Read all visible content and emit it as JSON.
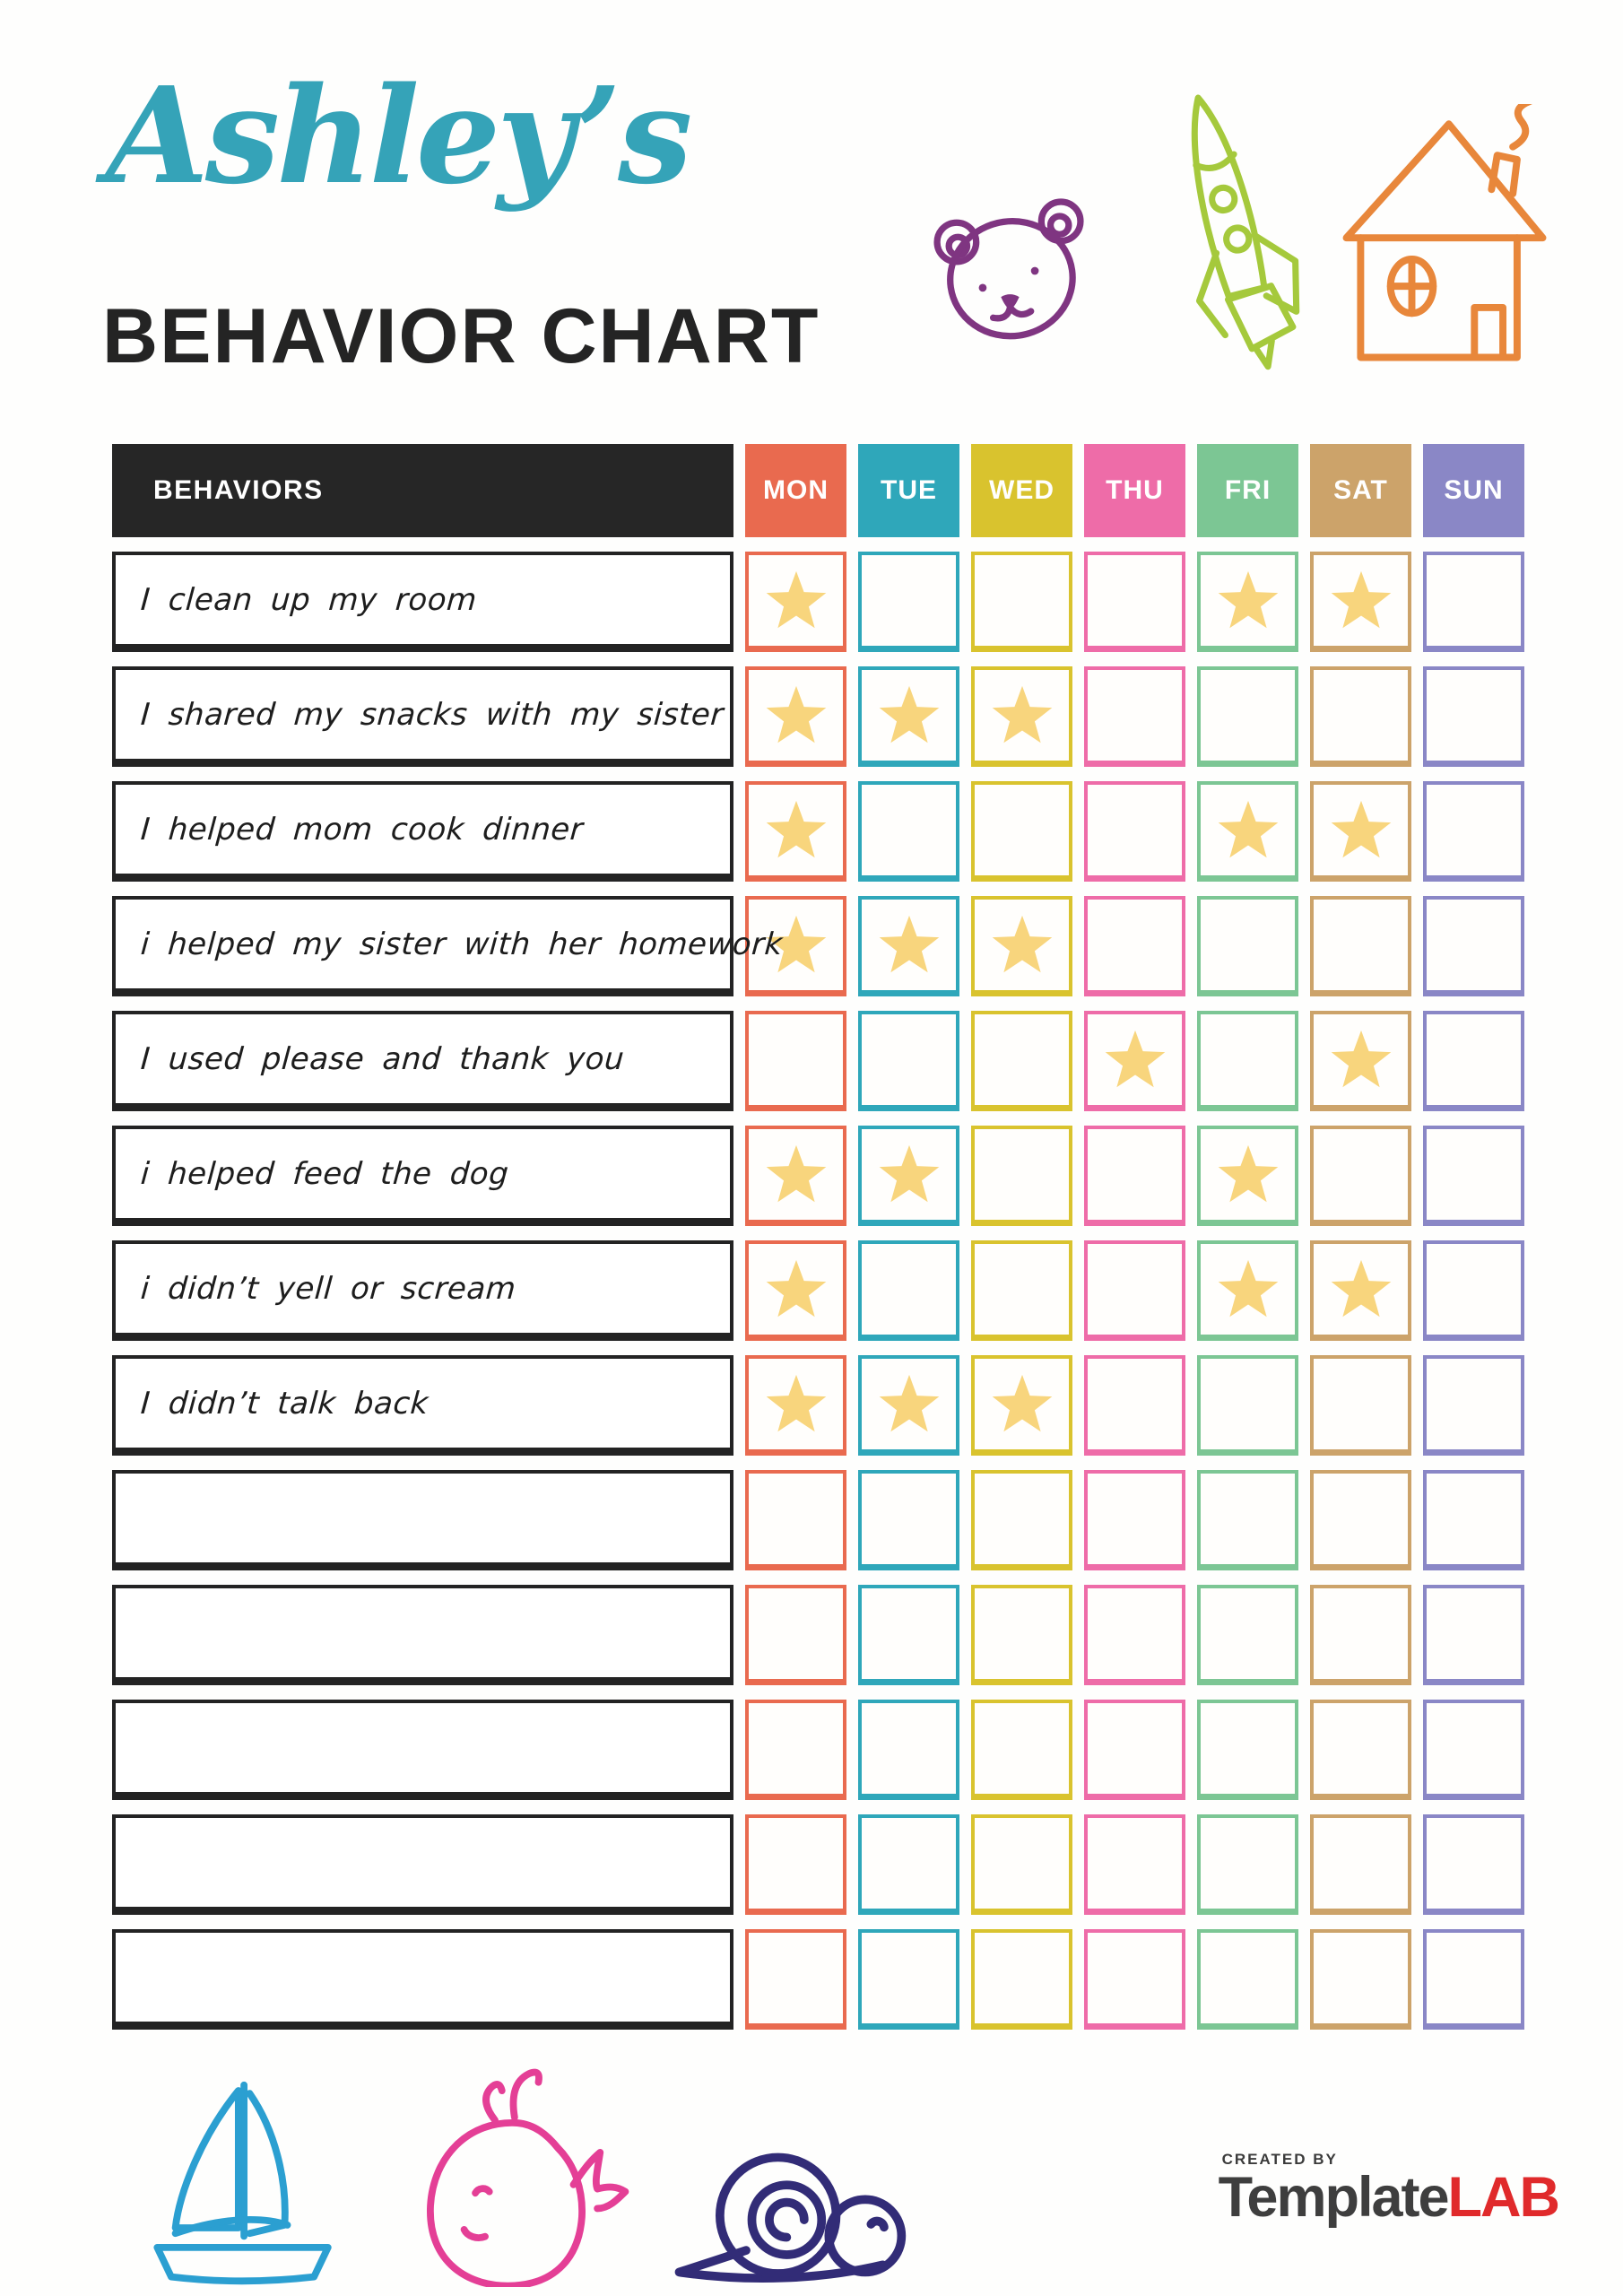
{
  "page": {
    "title_script": "Ashley’s",
    "title_main": "BEHAVIOR CHART"
  },
  "chart": {
    "behaviors_header": "BEHAVIORS",
    "header_bg": "#262626",
    "star_color": "#f8d57d",
    "days": [
      {
        "label": "MON",
        "color": "#e96a4f"
      },
      {
        "label": "TUE",
        "color": "#2fa7ba"
      },
      {
        "label": "WED",
        "color": "#d9c32e"
      },
      {
        "label": "THU",
        "color": "#ee6ca8"
      },
      {
        "label": "FRI",
        "color": "#7cc694"
      },
      {
        "label": "SAT",
        "color": "#cca36a"
      },
      {
        "label": "SUN",
        "color": "#8a87c6"
      }
    ],
    "rows": [
      {
        "label": "I clean up my room",
        "stars": [
          "MON",
          "FRI",
          "SAT"
        ]
      },
      {
        "label": "I shared my snacks with my sister",
        "stars": [
          "MON",
          "TUE",
          "WED"
        ]
      },
      {
        "label": "I helped mom cook dinner",
        "stars": [
          "MON",
          "FRI",
          "SAT"
        ]
      },
      {
        "label": "i helped my sister with her homework",
        "stars": [
          "MON",
          "TUE",
          "WED"
        ]
      },
      {
        "label": "I used please and thank you",
        "stars": [
          "THU",
          "SAT"
        ]
      },
      {
        "label": "i helped feed the dog",
        "stars": [
          "MON",
          "TUE",
          "FRI"
        ]
      },
      {
        "label": "i didn’t yell or scream",
        "stars": [
          "MON",
          "FRI",
          "SAT"
        ]
      },
      {
        "label": "I didn’t talk back",
        "stars": [
          "MON",
          "TUE",
          "WED"
        ]
      },
      {
        "label": "",
        "stars": []
      },
      {
        "label": "",
        "stars": []
      },
      {
        "label": "",
        "stars": []
      },
      {
        "label": "",
        "stars": []
      },
      {
        "label": "",
        "stars": []
      }
    ]
  },
  "decorations": {
    "colors": {
      "script-title": "#35a3b8",
      "bear": "#7f3581",
      "rocket": "#a5c93c",
      "house": "#e8873b",
      "sailboat": "#2b9fd1",
      "whale": "#e43f96",
      "snail": "#322c77",
      "lab-red": "#e02a2b",
      "header-bg": "#262626"
    }
  },
  "footer": {
    "created_by": "CREATED BY",
    "brand_template": "Template",
    "brand_lab": "LAB"
  }
}
